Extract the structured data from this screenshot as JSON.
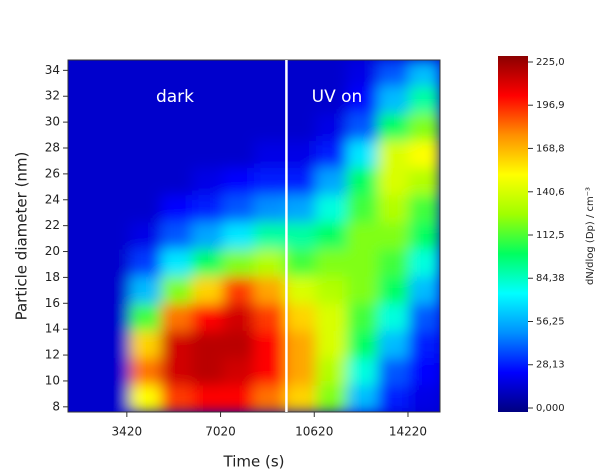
{
  "chart_data": {
    "type": "heatmap",
    "xlabel": "Time (s)",
    "ylabel": "Particle diameter (nm)",
    "colorbar_label": "dN/dlog (Dp) / cm⁻³",
    "annotations": [
      "dark",
      "UV on"
    ],
    "vlines": [
      9550
    ],
    "xlim": [
      1160,
      15450
    ],
    "xticks": [
      3420,
      7020,
      10620,
      14220
    ],
    "ylim": [
      7.6,
      34.8
    ],
    "yticks": [
      8,
      10,
      12,
      14,
      16,
      18,
      20,
      22,
      24,
      26,
      28,
      30,
      32,
      34
    ],
    "xbins": [
      1160,
      2350,
      3540,
      4730,
      5920,
      7110,
      8300,
      9490,
      10680,
      11870,
      13060,
      14250,
      15450
    ],
    "ybins": [
      7.6,
      9.7,
      11.8,
      13.9,
      16,
      18.1,
      20.2,
      22.3,
      24.4,
      26.5,
      28.6,
      30.7,
      32.8,
      34.8
    ],
    "z": [
      [
        15,
        15,
        150,
        190,
        200,
        200,
        180,
        160,
        120,
        60,
        30,
        20
      ],
      [
        15,
        15,
        180,
        210,
        215,
        210,
        200,
        170,
        130,
        80,
        40,
        25
      ],
      [
        15,
        15,
        160,
        210,
        215,
        215,
        200,
        170,
        140,
        100,
        60,
        30
      ],
      [
        15,
        15,
        110,
        180,
        200,
        210,
        190,
        160,
        140,
        110,
        80,
        40
      ],
      [
        15,
        15,
        60,
        120,
        160,
        190,
        170,
        140,
        130,
        120,
        100,
        60
      ],
      [
        15,
        15,
        35,
        70,
        100,
        120,
        130,
        110,
        120,
        120,
        110,
        80
      ],
      [
        15,
        15,
        20,
        40,
        55,
        70,
        90,
        90,
        100,
        120,
        120,
        100
      ],
      [
        15,
        15,
        15,
        25,
        30,
        40,
        50,
        55,
        80,
        110,
        130,
        110
      ],
      [
        15,
        15,
        15,
        15,
        20,
        25,
        30,
        30,
        55,
        100,
        140,
        130
      ],
      [
        15,
        15,
        15,
        15,
        15,
        15,
        20,
        20,
        30,
        70,
        140,
        150
      ],
      [
        15,
        15,
        15,
        15,
        15,
        15,
        15,
        15,
        20,
        40,
        100,
        120
      ],
      [
        15,
        15,
        15,
        15,
        15,
        15,
        15,
        15,
        15,
        25,
        60,
        90
      ],
      [
        15,
        15,
        15,
        15,
        15,
        15,
        15,
        15,
        15,
        20,
        40,
        60
      ]
    ],
    "zlim": [
      0,
      225
    ],
    "zticks": [
      {
        "value": 0,
        "label": "0,000"
      },
      {
        "value": 28.13,
        "label": "28,13"
      },
      {
        "value": 56.25,
        "label": "56,25"
      },
      {
        "value": 84.38,
        "label": "84,38"
      },
      {
        "value": 112.5,
        "label": "112,5"
      },
      {
        "value": 140.6,
        "label": "140,6"
      },
      {
        "value": 168.8,
        "label": "168,8"
      },
      {
        "value": 196.9,
        "label": "196,9"
      },
      {
        "value": 225,
        "label": "225,0"
      }
    ],
    "colorscale": [
      "#000080",
      "#0000ff",
      "#0090ff",
      "#00ffff",
      "#00ff60",
      "#a0ff00",
      "#ffff00",
      "#ff9000",
      "#ff0000",
      "#8b0000"
    ]
  }
}
